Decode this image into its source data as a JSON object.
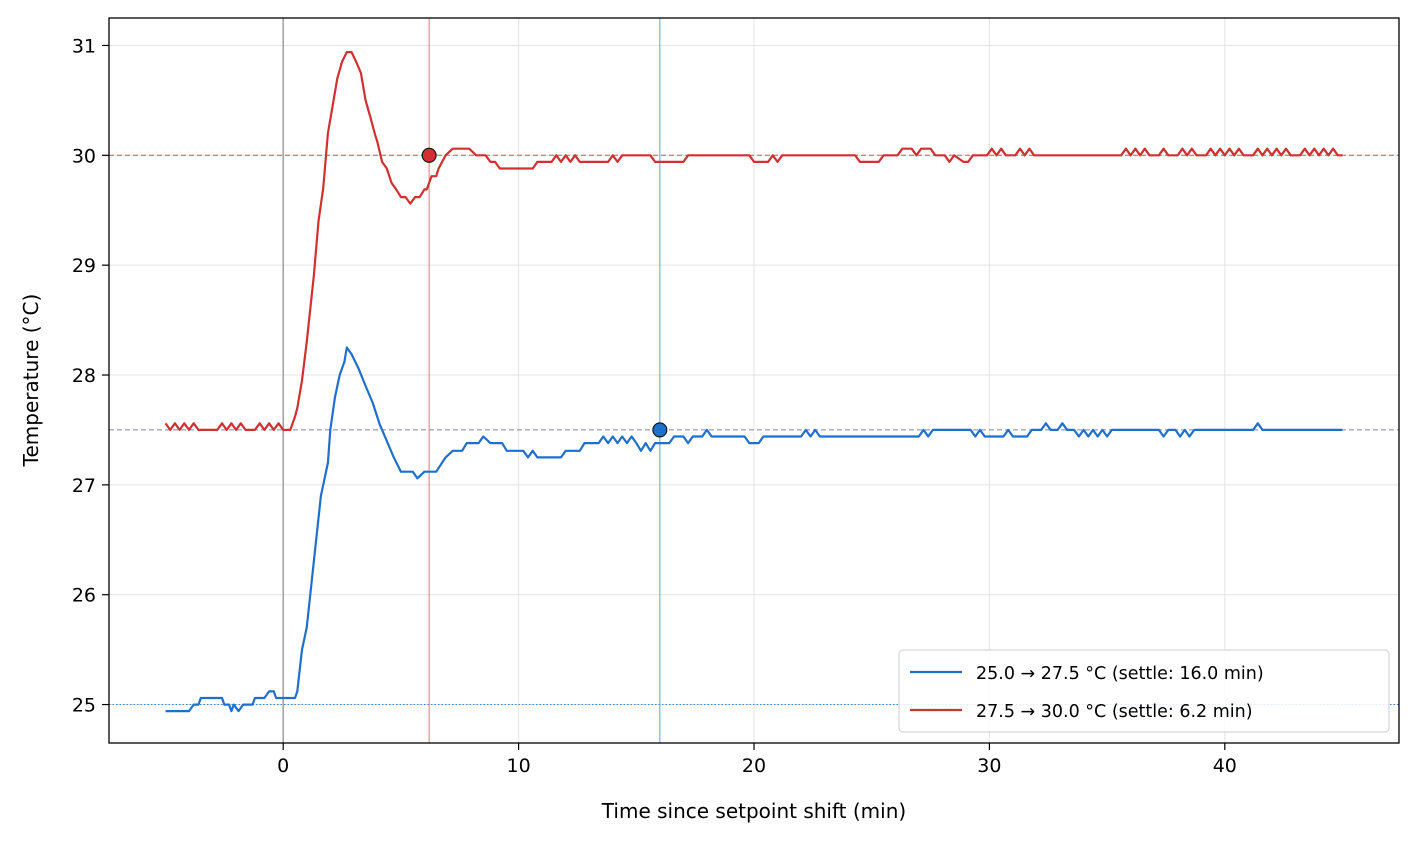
{
  "chart_data": {
    "type": "line",
    "title": "",
    "xlabel": "Time since setpoint shift (min)",
    "ylabel": "Temperature (°C)",
    "xlim": [
      -7.4,
      47.4
    ],
    "ylim": [
      24.65,
      31.25
    ],
    "xticks": [
      0,
      10,
      20,
      30,
      40
    ],
    "xtick_labels": [
      "0",
      "10",
      "20",
      "30",
      "40"
    ],
    "yticks": [
      25,
      26,
      27,
      28,
      29,
      30,
      31
    ],
    "ytick_labels": [
      "25",
      "26",
      "27",
      "28",
      "29",
      "30",
      "31"
    ],
    "grid": true,
    "legend_position": "lower-right",
    "shift_time": 0,
    "setpoint_lines": [
      {
        "y": 25.0,
        "style": "dotted",
        "color": "#1f77d2"
      },
      {
        "y": 27.5,
        "style": "dashed",
        "color": "#5a6aa0"
      },
      {
        "y": 30.0,
        "style": "dashed",
        "color": "#d23232"
      }
    ],
    "series": [
      {
        "name": "25.0 → 27.5 °C  (settle: 16.0 min)",
        "color": "#1f6fcc",
        "settle_time": 16.0,
        "settle_value": 27.5,
        "points": [
          [
            -5.0,
            24.94
          ],
          [
            -4.0,
            24.94
          ],
          [
            -3.8,
            25.0
          ],
          [
            -3.6,
            25.0
          ],
          [
            -3.5,
            25.06
          ],
          [
            -2.6,
            25.06
          ],
          [
            -2.5,
            25.0
          ],
          [
            -2.3,
            25.0
          ],
          [
            -2.2,
            24.94
          ],
          [
            -2.1,
            25.0
          ],
          [
            -1.9,
            24.94
          ],
          [
            -1.7,
            25.0
          ],
          [
            -1.3,
            25.0
          ],
          [
            -1.2,
            25.06
          ],
          [
            -0.8,
            25.06
          ],
          [
            -0.6,
            25.12
          ],
          [
            -0.4,
            25.12
          ],
          [
            -0.3,
            25.06
          ],
          [
            0.5,
            25.06
          ],
          [
            0.6,
            25.12
          ],
          [
            0.8,
            25.5
          ],
          [
            1.0,
            25.7
          ],
          [
            1.3,
            26.3
          ],
          [
            1.6,
            26.9
          ],
          [
            1.9,
            27.2
          ],
          [
            2.0,
            27.5
          ],
          [
            2.2,
            27.8
          ],
          [
            2.4,
            28.0
          ],
          [
            2.6,
            28.12
          ],
          [
            2.7,
            28.25
          ],
          [
            2.9,
            28.19
          ],
          [
            3.2,
            28.06
          ],
          [
            3.5,
            27.9
          ],
          [
            3.8,
            27.75
          ],
          [
            4.1,
            27.55
          ],
          [
            4.4,
            27.4
          ],
          [
            4.7,
            27.25
          ],
          [
            5.0,
            27.12
          ],
          [
            5.5,
            27.12
          ],
          [
            5.7,
            27.06
          ],
          [
            6.0,
            27.12
          ],
          [
            6.5,
            27.12
          ],
          [
            6.9,
            27.25
          ],
          [
            7.2,
            27.31
          ],
          [
            7.6,
            27.31
          ],
          [
            7.8,
            27.38
          ],
          [
            8.3,
            27.38
          ],
          [
            8.5,
            27.44
          ],
          [
            8.8,
            27.38
          ],
          [
            9.3,
            27.38
          ],
          [
            9.5,
            27.31
          ],
          [
            10.2,
            27.31
          ],
          [
            10.4,
            27.25
          ],
          [
            10.6,
            27.31
          ],
          [
            10.8,
            27.25
          ],
          [
            11.8,
            27.25
          ],
          [
            12.0,
            27.31
          ],
          [
            12.6,
            27.31
          ],
          [
            12.8,
            27.38
          ],
          [
            13.4,
            27.38
          ],
          [
            13.6,
            27.44
          ],
          [
            13.8,
            27.38
          ],
          [
            14.0,
            27.44
          ],
          [
            14.2,
            27.38
          ],
          [
            14.4,
            27.44
          ],
          [
            14.6,
            27.38
          ],
          [
            14.8,
            27.44
          ],
          [
            15.0,
            27.38
          ],
          [
            15.2,
            27.31
          ],
          [
            15.4,
            27.38
          ],
          [
            15.6,
            27.31
          ],
          [
            15.8,
            27.38
          ],
          [
            16.4,
            27.38
          ],
          [
            16.6,
            27.44
          ],
          [
            17.0,
            27.44
          ],
          [
            17.2,
            27.38
          ],
          [
            17.4,
            27.44
          ],
          [
            17.8,
            27.44
          ],
          [
            18.0,
            27.5
          ],
          [
            18.2,
            27.44
          ],
          [
            19.6,
            27.44
          ],
          [
            19.8,
            27.38
          ],
          [
            20.2,
            27.38
          ],
          [
            20.4,
            27.44
          ],
          [
            22.0,
            27.44
          ],
          [
            22.2,
            27.5
          ],
          [
            22.4,
            27.44
          ],
          [
            22.6,
            27.5
          ],
          [
            22.8,
            27.44
          ],
          [
            27.0,
            27.44
          ],
          [
            27.2,
            27.5
          ],
          [
            27.4,
            27.44
          ],
          [
            27.6,
            27.5
          ],
          [
            29.2,
            27.5
          ],
          [
            29.4,
            27.44
          ],
          [
            29.6,
            27.5
          ],
          [
            29.8,
            27.44
          ],
          [
            30.6,
            27.44
          ],
          [
            30.8,
            27.5
          ],
          [
            31.0,
            27.44
          ],
          [
            31.6,
            27.44
          ],
          [
            31.8,
            27.5
          ],
          [
            32.2,
            27.5
          ],
          [
            32.4,
            27.56
          ],
          [
            32.6,
            27.5
          ],
          [
            32.9,
            27.5
          ],
          [
            33.1,
            27.56
          ],
          [
            33.3,
            27.5
          ],
          [
            33.6,
            27.5
          ],
          [
            33.8,
            27.44
          ],
          [
            34.0,
            27.5
          ],
          [
            34.2,
            27.44
          ],
          [
            34.4,
            27.5
          ],
          [
            34.6,
            27.44
          ],
          [
            34.8,
            27.5
          ],
          [
            35.0,
            27.44
          ],
          [
            35.2,
            27.5
          ],
          [
            37.2,
            27.5
          ],
          [
            37.4,
            27.44
          ],
          [
            37.6,
            27.5
          ],
          [
            37.9,
            27.5
          ],
          [
            38.1,
            27.44
          ],
          [
            38.3,
            27.5
          ],
          [
            38.5,
            27.44
          ],
          [
            38.7,
            27.5
          ],
          [
            41.2,
            27.5
          ],
          [
            41.4,
            27.56
          ],
          [
            41.6,
            27.5
          ],
          [
            45.0,
            27.5
          ]
        ]
      },
      {
        "name": "27.5 → 30.0 °C  (settle: 6.2 min)",
        "color": "#d03030",
        "settle_time": 6.2,
        "settle_value": 30.0,
        "points": [
          [
            -5.0,
            27.56
          ],
          [
            -4.8,
            27.5
          ],
          [
            -4.6,
            27.56
          ],
          [
            -4.4,
            27.5
          ],
          [
            -4.2,
            27.56
          ],
          [
            -4.0,
            27.5
          ],
          [
            -3.8,
            27.56
          ],
          [
            -3.6,
            27.5
          ],
          [
            -2.8,
            27.5
          ],
          [
            -2.6,
            27.56
          ],
          [
            -2.4,
            27.5
          ],
          [
            -2.2,
            27.56
          ],
          [
            -2.0,
            27.5
          ],
          [
            -1.8,
            27.56
          ],
          [
            -1.6,
            27.5
          ],
          [
            -1.2,
            27.5
          ],
          [
            -1.0,
            27.56
          ],
          [
            -0.8,
            27.5
          ],
          [
            -0.6,
            27.56
          ],
          [
            -0.4,
            27.5
          ],
          [
            -0.2,
            27.56
          ],
          [
            0.0,
            27.5
          ],
          [
            0.3,
            27.5
          ],
          [
            0.5,
            27.62
          ],
          [
            0.6,
            27.7
          ],
          [
            0.8,
            27.95
          ],
          [
            1.0,
            28.3
          ],
          [
            1.3,
            28.9
          ],
          [
            1.5,
            29.4
          ],
          [
            1.7,
            29.7
          ],
          [
            1.9,
            30.2
          ],
          [
            2.1,
            30.45
          ],
          [
            2.3,
            30.7
          ],
          [
            2.5,
            30.85
          ],
          [
            2.7,
            30.94
          ],
          [
            2.9,
            30.94
          ],
          [
            3.1,
            30.85
          ],
          [
            3.3,
            30.75
          ],
          [
            3.5,
            30.5
          ],
          [
            3.7,
            30.35
          ],
          [
            3.9,
            30.19
          ],
          [
            4.0,
            30.12
          ],
          [
            4.2,
            29.94
          ],
          [
            4.4,
            29.88
          ],
          [
            4.6,
            29.75
          ],
          [
            4.8,
            29.69
          ],
          [
            5.0,
            29.62
          ],
          [
            5.2,
            29.62
          ],
          [
            5.4,
            29.56
          ],
          [
            5.6,
            29.62
          ],
          [
            5.8,
            29.62
          ],
          [
            6.0,
            29.69
          ],
          [
            6.1,
            29.69
          ],
          [
            6.3,
            29.81
          ],
          [
            6.5,
            29.81
          ],
          [
            6.6,
            29.88
          ],
          [
            6.9,
            30.0
          ],
          [
            7.2,
            30.06
          ],
          [
            7.9,
            30.06
          ],
          [
            8.2,
            30.0
          ],
          [
            8.6,
            30.0
          ],
          [
            8.8,
            29.94
          ],
          [
            9.0,
            29.94
          ],
          [
            9.2,
            29.88
          ],
          [
            10.6,
            29.88
          ],
          [
            10.8,
            29.94
          ],
          [
            11.4,
            29.94
          ],
          [
            11.6,
            30.0
          ],
          [
            11.8,
            29.94
          ],
          [
            12.0,
            30.0
          ],
          [
            12.2,
            29.94
          ],
          [
            12.4,
            30.0
          ],
          [
            12.6,
            29.94
          ],
          [
            13.8,
            29.94
          ],
          [
            14.0,
            30.0
          ],
          [
            14.2,
            29.94
          ],
          [
            14.4,
            30.0
          ],
          [
            15.6,
            30.0
          ],
          [
            15.8,
            29.94
          ],
          [
            17.0,
            29.94
          ],
          [
            17.2,
            30.0
          ],
          [
            19.8,
            30.0
          ],
          [
            20.0,
            29.94
          ],
          [
            20.6,
            29.94
          ],
          [
            20.8,
            30.0
          ],
          [
            21.0,
            29.94
          ],
          [
            21.2,
            30.0
          ],
          [
            24.3,
            30.0
          ],
          [
            24.5,
            29.94
          ],
          [
            25.3,
            29.94
          ],
          [
            25.5,
            30.0
          ],
          [
            26.1,
            30.0
          ],
          [
            26.3,
            30.06
          ],
          [
            26.7,
            30.06
          ],
          [
            26.9,
            30.0
          ],
          [
            27.1,
            30.06
          ],
          [
            27.5,
            30.06
          ],
          [
            27.7,
            30.0
          ],
          [
            28.1,
            30.0
          ],
          [
            28.3,
            29.94
          ],
          [
            28.5,
            30.0
          ],
          [
            28.9,
            29.94
          ],
          [
            29.1,
            29.94
          ],
          [
            29.3,
            30.0
          ],
          [
            29.9,
            30.0
          ],
          [
            30.1,
            30.06
          ],
          [
            30.3,
            30.0
          ],
          [
            30.5,
            30.06
          ],
          [
            30.7,
            30.0
          ],
          [
            31.1,
            30.0
          ],
          [
            31.3,
            30.06
          ],
          [
            31.5,
            30.0
          ],
          [
            31.7,
            30.06
          ],
          [
            31.9,
            30.0
          ],
          [
            35.6,
            30.0
          ],
          [
            35.8,
            30.06
          ],
          [
            36.0,
            30.0
          ],
          [
            36.2,
            30.06
          ],
          [
            36.4,
            30.0
          ],
          [
            36.6,
            30.06
          ],
          [
            36.8,
            30.0
          ],
          [
            37.2,
            30.0
          ],
          [
            37.4,
            30.06
          ],
          [
            37.6,
            30.0
          ],
          [
            38.0,
            30.0
          ],
          [
            38.2,
            30.06
          ],
          [
            38.4,
            30.0
          ],
          [
            38.6,
            30.06
          ],
          [
            38.8,
            30.0
          ],
          [
            39.2,
            30.0
          ],
          [
            39.4,
            30.06
          ],
          [
            39.6,
            30.0
          ],
          [
            39.8,
            30.06
          ],
          [
            40.0,
            30.0
          ],
          [
            40.2,
            30.06
          ],
          [
            40.4,
            30.0
          ],
          [
            40.6,
            30.06
          ],
          [
            40.8,
            30.0
          ],
          [
            41.2,
            30.0
          ],
          [
            41.4,
            30.06
          ],
          [
            41.6,
            30.0
          ],
          [
            41.8,
            30.06
          ],
          [
            42.0,
            30.0
          ],
          [
            42.2,
            30.06
          ],
          [
            42.4,
            30.0
          ],
          [
            42.6,
            30.06
          ],
          [
            42.8,
            30.0
          ],
          [
            43.2,
            30.0
          ],
          [
            43.4,
            30.06
          ],
          [
            43.6,
            30.0
          ],
          [
            43.8,
            30.06
          ],
          [
            44.0,
            30.0
          ],
          [
            44.2,
            30.06
          ],
          [
            44.4,
            30.0
          ],
          [
            44.6,
            30.06
          ],
          [
            44.8,
            30.0
          ],
          [
            45.0,
            30.0
          ]
        ]
      }
    ]
  }
}
